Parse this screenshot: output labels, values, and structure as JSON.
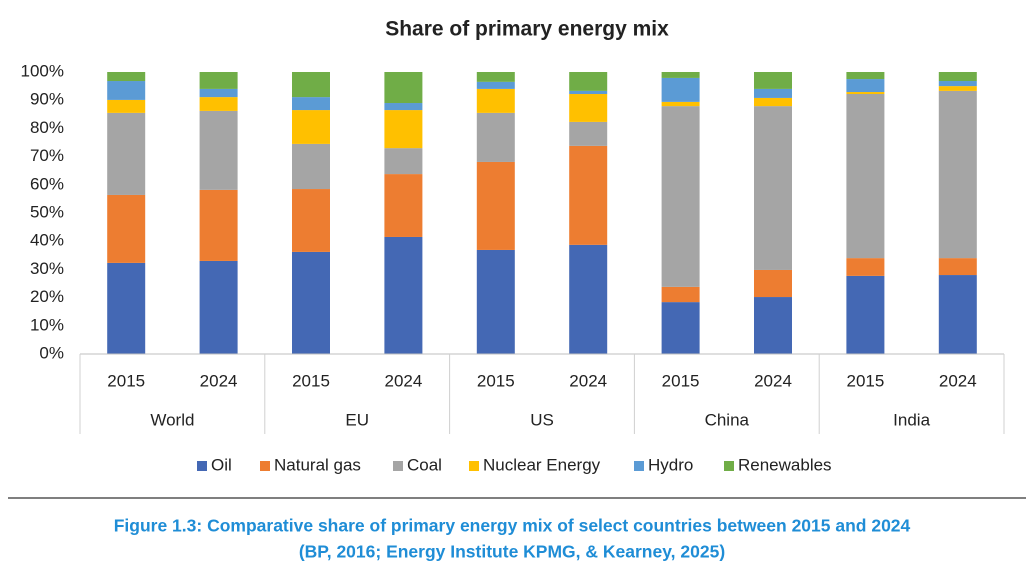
{
  "chart_data": {
    "type": "stacked_bar",
    "title": "Share of primary energy mix",
    "categories": [
      "2015",
      "2024",
      "2015",
      "2024",
      "2015",
      "2024",
      "2015",
      "2024",
      "2015",
      "2024"
    ],
    "groups": [
      "World",
      "EU",
      "US",
      "China",
      "India"
    ],
    "series": [
      {
        "name": "Oil",
        "color": "#4468b4",
        "values": [
          32.3,
          33,
          36.2,
          41.5,
          36.9,
          38.7,
          18.4,
          20.2,
          27.7,
          28
        ]
      },
      {
        "name": "Natural gas",
        "color": "#ed7d31",
        "values": [
          24.1,
          25.2,
          22.3,
          22.3,
          31.2,
          35.1,
          5.4,
          9.6,
          6.3,
          6
        ]
      },
      {
        "name": "Coal",
        "color": "#a5a5a5",
        "values": [
          29.1,
          28,
          16,
          9.2,
          17.4,
          8.5,
          64.1,
          58.1,
          58.2,
          59.3
        ]
      },
      {
        "name": "Nuclear Energy",
        "color": "#ffc000",
        "values": [
          4.6,
          4.9,
          12,
          13.5,
          8.5,
          9.9,
          1.5,
          2.9,
          0.7,
          1.7
        ]
      },
      {
        "name": "Hydro",
        "color": "#5b9bd5",
        "values": [
          6.7,
          2.9,
          4.6,
          2.5,
          2.5,
          1.1,
          8.5,
          3.2,
          4.6,
          1.8
        ]
      },
      {
        "name": "Renewables",
        "color": "#70ad47",
        "values": [
          3.2,
          6,
          8.9,
          11,
          3.5,
          6.7,
          2.1,
          6,
          2.5,
          3.2
        ]
      }
    ],
    "ylim": [
      0,
      100
    ],
    "yticks": [
      {
        "value": 0,
        "label": "0%"
      },
      {
        "value": 10,
        "label": "10%"
      },
      {
        "value": 20,
        "label": "20%"
      },
      {
        "value": 30,
        "label": "30%"
      },
      {
        "value": 40,
        "label": "40%"
      },
      {
        "value": 50,
        "label": "50%"
      },
      {
        "value": 60,
        "label": "60%"
      },
      {
        "value": 70,
        "label": "70%"
      },
      {
        "value": 80,
        "label": "80%"
      },
      {
        "value": 90,
        "label": "90%"
      },
      {
        "value": 100,
        "label": "100%"
      }
    ],
    "grid": false,
    "legend": "bottom",
    "caption": [
      "Figure 1.3: Comparative share of primary energy mix of select countries between 2015 and 2024",
      "(BP, 2016; Energy Institute KPMG, & Kearney, 2025)"
    ]
  }
}
